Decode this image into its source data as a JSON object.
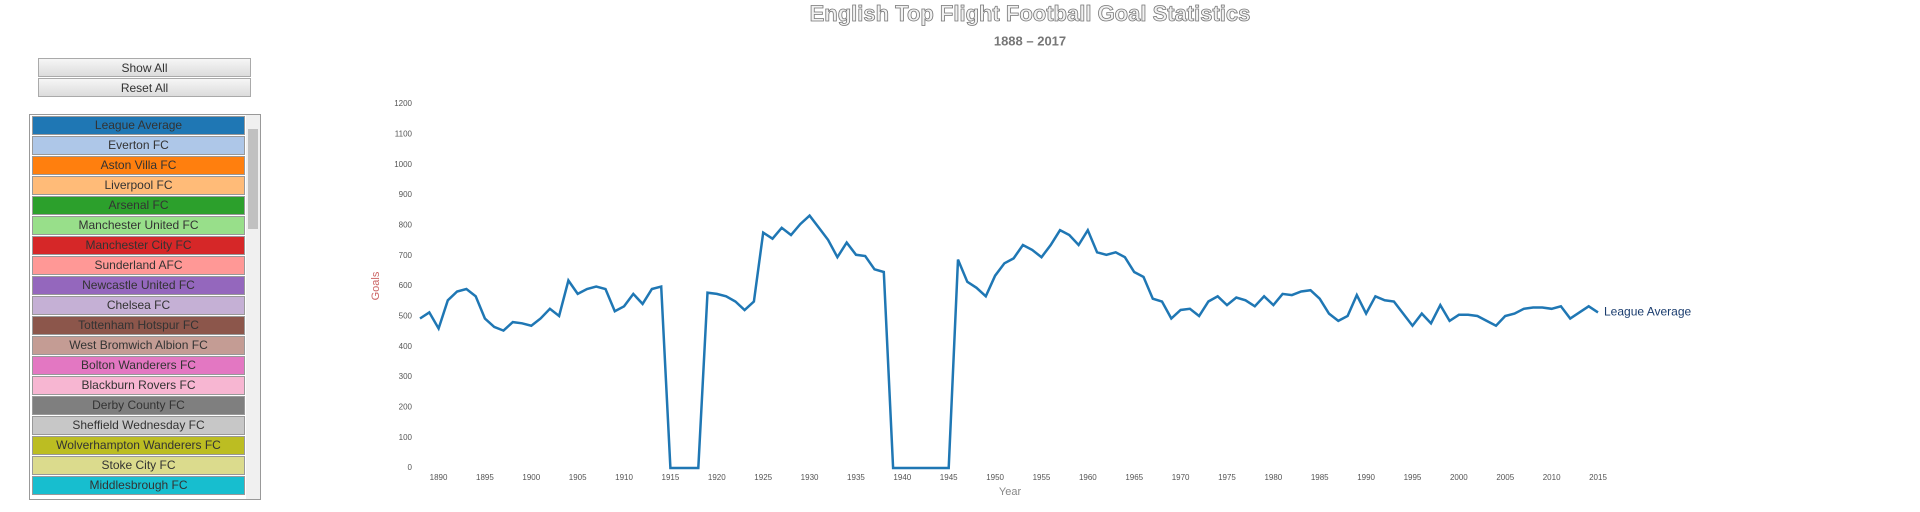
{
  "controls": {
    "buttons": [
      "Show All",
      "Reset All"
    ],
    "teams": [
      {
        "label": "League Average",
        "color": "#1f77b4"
      },
      {
        "label": "Everton FC",
        "color": "#aec7e8"
      },
      {
        "label": "Aston Villa FC",
        "color": "#ff7f0e"
      },
      {
        "label": "Liverpool FC",
        "color": "#ffbb78"
      },
      {
        "label": "Arsenal FC",
        "color": "#2ca02c"
      },
      {
        "label": "Manchester United FC",
        "color": "#98df8a"
      },
      {
        "label": "Manchester City FC",
        "color": "#d62728"
      },
      {
        "label": "Sunderland AFC",
        "color": "#ff9896"
      },
      {
        "label": "Newcastle United FC",
        "color": "#9467bd"
      },
      {
        "label": "Chelsea FC",
        "color": "#c5b0d5"
      },
      {
        "label": "Tottenham Hotspur FC",
        "color": "#8c564b"
      },
      {
        "label": "West Bromwich Albion FC",
        "color": "#c49c94"
      },
      {
        "label": "Bolton Wanderers FC",
        "color": "#e377c2"
      },
      {
        "label": "Blackburn Rovers FC",
        "color": "#f7b6d2"
      },
      {
        "label": "Derby County FC",
        "color": "#7f7f7f"
      },
      {
        "label": "Sheffield Wednesday FC",
        "color": "#c7c7c7"
      },
      {
        "label": "Wolverhampton Wanderers FC",
        "color": "#bcbd22"
      },
      {
        "label": "Stoke City FC",
        "color": "#dbdb8d"
      },
      {
        "label": "Middlesbrough FC",
        "color": "#17becf"
      }
    ]
  },
  "chart_data": {
    "type": "line",
    "title": "English Top Flight Football Goal Statistics",
    "subtitle": "1888 – 2017",
    "x_label": "Year",
    "y_label": "Goals",
    "x": [
      1888,
      1889,
      1890,
      1891,
      1892,
      1893,
      1894,
      1895,
      1896,
      1897,
      1898,
      1899,
      1900,
      1901,
      1902,
      1903,
      1904,
      1905,
      1906,
      1907,
      1908,
      1909,
      1910,
      1911,
      1912,
      1913,
      1914,
      1915,
      1916,
      1917,
      1918,
      1919,
      1920,
      1921,
      1922,
      1923,
      1924,
      1925,
      1926,
      1927,
      1928,
      1929,
      1930,
      1931,
      1932,
      1933,
      1934,
      1935,
      1936,
      1937,
      1938,
      1939,
      1940,
      1941,
      1942,
      1943,
      1944,
      1945,
      1946,
      1947,
      1948,
      1949,
      1950,
      1951,
      1952,
      1953,
      1954,
      1955,
      1956,
      1957,
      1958,
      1959,
      1960,
      1961,
      1962,
      1963,
      1964,
      1965,
      1966,
      1967,
      1968,
      1969,
      1970,
      1971,
      1972,
      1973,
      1974,
      1975,
      1976,
      1977,
      1978,
      1979,
      1980,
      1981,
      1982,
      1983,
      1984,
      1985,
      1986,
      1987,
      1988,
      1989,
      1990,
      1991,
      1992,
      1993,
      1994,
      1995,
      1996,
      1997,
      1998,
      1999,
      2000,
      2001,
      2002,
      2003,
      2004,
      2005,
      2006,
      2007,
      2008,
      2009,
      2010,
      2011,
      2012,
      2013,
      2014,
      2015
    ],
    "series": [
      {
        "name": "League Average",
        "color": "#1f77b4",
        "values": [
          493,
          513,
          460,
          553,
          582,
          590,
          566,
          493,
          465,
          453,
          481,
          477,
          469,
          493,
          525,
          501,
          618,
          574,
          590,
          598,
          590,
          517,
          533,
          574,
          541,
          590,
          598,
          0,
          0,
          0,
          0,
          578,
          574,
          566,
          549,
          521,
          549,
          776,
          756,
          792,
          768,
          804,
          832,
          792,
          752,
          695,
          743,
          703,
          699,
          655,
          646,
          0,
          0,
          0,
          0,
          0,
          0,
          0,
          687,
          614,
          594,
          566,
          634,
          675,
          691,
          735,
          719,
          695,
          735,
          784,
          768,
          735,
          784,
          711,
          703,
          711,
          695,
          646,
          630,
          558,
          549,
          493,
          521,
          525,
          501,
          549,
          566,
          537,
          562,
          553,
          533,
          566,
          537,
          574,
          570,
          582,
          586,
          558,
          509,
          485,
          501,
          570,
          509,
          566,
          553,
          549,
          509,
          469,
          509,
          477,
          537,
          485,
          505,
          505,
          501,
          485,
          469,
          501,
          509,
          525,
          529,
          529,
          525,
          533,
          493,
          513,
          533,
          513
        ]
      }
    ],
    "xlim": [
      1888,
      2015
    ],
    "xticks": [
      1890,
      1895,
      1900,
      1905,
      1910,
      1915,
      1920,
      1925,
      1930,
      1935,
      1940,
      1945,
      1950,
      1955,
      1960,
      1965,
      1970,
      1975,
      1980,
      1985,
      1990,
      1995,
      2000,
      2005,
      2010,
      2015
    ],
    "ylim": [
      0,
      1200
    ],
    "yticks": [
      0,
      100,
      200,
      300,
      400,
      500,
      600,
      700,
      800,
      900,
      1000,
      1100,
      1200
    ],
    "grid": false
  }
}
